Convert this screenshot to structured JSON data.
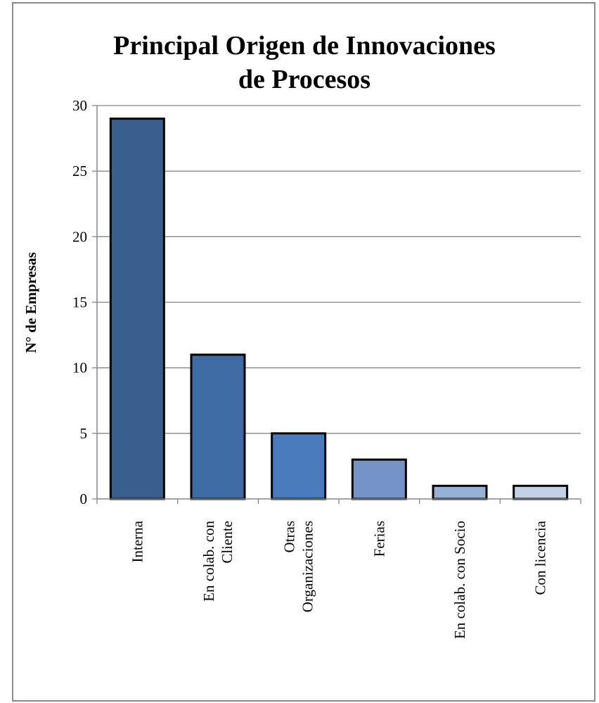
{
  "chart_data": {
    "type": "bar",
    "title_lines": [
      "Principal Origen de Innovaciones",
      "de Procesos"
    ],
    "ylabel": "N° de Empresas",
    "xlabel": "",
    "ylim": [
      0,
      30
    ],
    "yticks": [
      0,
      5,
      10,
      15,
      20,
      25,
      30
    ],
    "grid": true,
    "categories": [
      [
        "Interna"
      ],
      [
        "En colab. con",
        "Cliente"
      ],
      [
        "Otras",
        "Organizaciones"
      ],
      [
        "Ferias"
      ],
      [
        "En colab. con Socio"
      ],
      [
        "Con licencia"
      ]
    ],
    "values": [
      29,
      11,
      5,
      3,
      1,
      1
    ],
    "colors": [
      "#3a5f8f",
      "#3f6ba5",
      "#4a7bbd",
      "#7593c6",
      "#98b0d6",
      "#c3d0e6"
    ]
  }
}
